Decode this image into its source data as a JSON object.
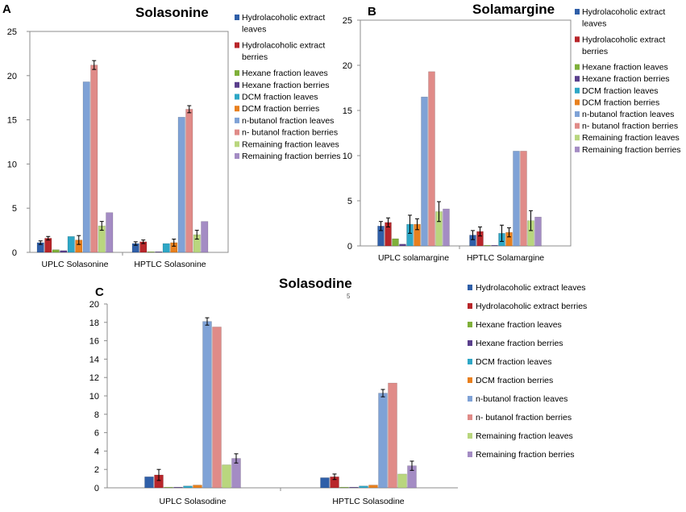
{
  "series_colors": [
    "#2f5fa8",
    "#b8262a",
    "#7fb03a",
    "#5a3f8c",
    "#2ea7c6",
    "#e8801e",
    "#7fa2d6",
    "#e08b88",
    "#b9d67e",
    "#a48cc4"
  ],
  "chart_data": [
    {
      "panel": "A",
      "type": "bar",
      "title": "Solasonine",
      "categories": [
        "UPLC Solasonine",
        "HPTLC Solasonine"
      ],
      "ylim": [
        0,
        25
      ],
      "yticks": [
        "0",
        "5",
        "10",
        "15",
        "20",
        "25"
      ],
      "legend": [
        "Hydrolacoholic extract",
        "leaves",
        "Hydrolacoholic extract",
        "berries",
        "Hexane fraction leaves",
        "Hexane fraction berries",
        "DCM fraction leaves",
        "DCM fraction berries",
        "n-butanol fraction  leaves",
        "n- butanol fraction berries",
        "Remaining fraction  leaves",
        "Remaining fraction berries"
      ],
      "series": [
        {
          "name": "Hydrolacoholic extract leaves",
          "values": [
            1.1,
            1.0
          ],
          "errors": [
            0.2,
            0.2
          ]
        },
        {
          "name": "Hydrolacoholic extract berries",
          "values": [
            1.6,
            1.2
          ],
          "errors": [
            0.2,
            0.2
          ]
        },
        {
          "name": "Hexane fraction leaves",
          "values": [
            0.3,
            0.05
          ],
          "errors": [
            0,
            0
          ]
        },
        {
          "name": "Hexane fraction berries",
          "values": [
            0.2,
            0.05
          ],
          "errors": [
            0,
            0
          ]
        },
        {
          "name": "DCM fraction leaves",
          "values": [
            1.8,
            1.0
          ],
          "errors": [
            0,
            0
          ]
        },
        {
          "name": "DCM fraction berries",
          "values": [
            1.4,
            1.1
          ],
          "errors": [
            0.5,
            0.4
          ]
        },
        {
          "name": "n-butanol fraction  leaves",
          "values": [
            19.3,
            15.3
          ],
          "errors": [
            0,
            0
          ]
        },
        {
          "name": "n- butanol fraction berries",
          "values": [
            21.2,
            16.2
          ],
          "errors": [
            0.5,
            0.4
          ]
        },
        {
          "name": "Remaining fraction  leaves",
          "values": [
            3.0,
            2.0
          ],
          "errors": [
            0.5,
            0.5
          ]
        },
        {
          "name": "Remaining fraction berries",
          "values": [
            4.5,
            3.5
          ],
          "errors": [
            0,
            0
          ]
        }
      ]
    },
    {
      "panel": "B",
      "type": "bar",
      "title": "Solamargine",
      "categories": [
        "UPLC solamargine",
        "HPTLC Solamargine"
      ],
      "ylim": [
        0,
        25
      ],
      "yticks": [
        "0",
        "5",
        "10",
        "15",
        "20",
        "25"
      ],
      "legend": [
        "Hydrolacoholic extract",
        "leaves",
        "Hydrolacoholic extract",
        "berries",
        "Hexane fraction leaves",
        "Hexane fraction berries",
        "DCM fraction leaves",
        "DCM fraction berries",
        "n-butanol fraction  leaves",
        "n- butanol fraction berries",
        "Remaining fraction  leaves",
        "Remaining fraction berries"
      ],
      "series": [
        {
          "name": "Hydrolacoholic extract leaves",
          "values": [
            2.2,
            1.2
          ],
          "errors": [
            0.5,
            0.5
          ]
        },
        {
          "name": "Hydrolacoholic extract berries",
          "values": [
            2.6,
            1.6
          ],
          "errors": [
            0.5,
            0.5
          ]
        },
        {
          "name": "Hexane fraction leaves",
          "values": [
            0.8,
            0.05
          ],
          "errors": [
            0,
            0
          ]
        },
        {
          "name": "Hexane fraction berries",
          "values": [
            0.2,
            0.05
          ],
          "errors": [
            0,
            0
          ]
        },
        {
          "name": "DCM fraction leaves",
          "values": [
            2.4,
            1.4
          ],
          "errors": [
            1.0,
            0.9
          ]
        },
        {
          "name": "DCM fraction berries",
          "values": [
            2.4,
            1.5
          ],
          "errors": [
            0.6,
            0.5
          ]
        },
        {
          "name": "n-butanol fraction  leaves",
          "values": [
            16.5,
            10.5
          ],
          "errors": [
            0,
            0
          ]
        },
        {
          "name": "n- butanol fraction berries",
          "values": [
            19.3,
            10.5
          ],
          "errors": [
            0,
            0
          ]
        },
        {
          "name": "Remaining fraction  leaves",
          "values": [
            3.8,
            2.8
          ],
          "errors": [
            1.1,
            1.1
          ]
        },
        {
          "name": "Remaining fraction berries",
          "values": [
            4.1,
            3.2
          ],
          "errors": [
            0,
            0
          ]
        }
      ]
    },
    {
      "panel": "C",
      "type": "bar",
      "title": "Solasodine",
      "categories": [
        "UPLC Solasodine",
        "HPTLC Solasodine"
      ],
      "ylim": [
        0,
        20
      ],
      "yticks": [
        "0",
        "2",
        "4",
        "6",
        "8",
        "10",
        "12",
        "14",
        "16",
        "18",
        "20"
      ],
      "legend": [
        "Hydrolacoholic extract leaves",
        "Hydrolacoholic extract berries",
        "Hexane fraction leaves",
        "Hexane fraction berries",
        "DCM fraction leaves",
        "DCM fraction berries",
        "n-butanol fraction  leaves",
        "n- butanol fraction berries",
        "Remaining fraction  leaves",
        "Remaining fraction berries"
      ],
      "series": [
        {
          "name": "Hydrolacoholic extract leaves",
          "values": [
            1.2,
            1.1
          ],
          "errors": [
            0,
            0
          ]
        },
        {
          "name": "Hydrolacoholic extract berries",
          "values": [
            1.4,
            1.2
          ],
          "errors": [
            0.6,
            0.3
          ]
        },
        {
          "name": "Hexane fraction leaves",
          "values": [
            0.05,
            0.05
          ],
          "errors": [
            0,
            0
          ]
        },
        {
          "name": "Hexane fraction berries",
          "values": [
            0.05,
            0.05
          ],
          "errors": [
            0,
            0
          ]
        },
        {
          "name": "DCM fraction leaves",
          "values": [
            0.2,
            0.2
          ],
          "errors": [
            0,
            0
          ]
        },
        {
          "name": "DCM fraction berries",
          "values": [
            0.3,
            0.3
          ],
          "errors": [
            0,
            0
          ]
        },
        {
          "name": "n-butanol fraction  leaves",
          "values": [
            18.1,
            10.3
          ],
          "errors": [
            0.4,
            0.4
          ]
        },
        {
          "name": "n- butanol fraction berries",
          "values": [
            17.5,
            11.4
          ],
          "errors": [
            0,
            0
          ]
        },
        {
          "name": "Remaining fraction  leaves",
          "values": [
            2.5,
            1.5
          ],
          "errors": [
            0,
            0
          ]
        },
        {
          "name": "Remaining fraction berries",
          "values": [
            3.2,
            2.4
          ],
          "errors": [
            0.5,
            0.5
          ]
        }
      ]
    }
  ]
}
